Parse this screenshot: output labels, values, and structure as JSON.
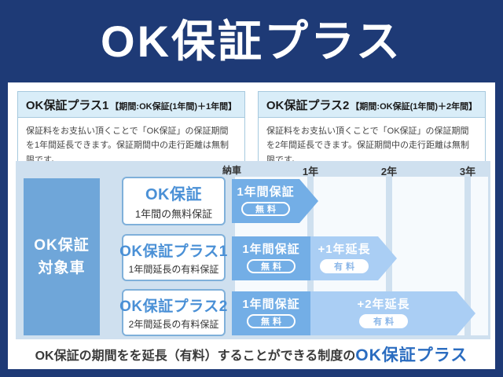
{
  "title": "OK保証プラス",
  "colors": {
    "navy_background": "#1e3a76",
    "panel_background": "#cfe0ef",
    "free_segment_blue": "#73aee6",
    "paid_segment_blue": "#aacef4",
    "target_box_blue": "#6fa6d9",
    "card_title_blue": "#4a90d6",
    "footer_highlight_blue": "#2a6cc0",
    "plan_header_blue": "#d9edf8"
  },
  "plan_cards": [
    {
      "name": "OK保証プラス1",
      "period": "【期間:OK保証(1年間)＋1年間】",
      "description": "保証料をお支払い頂くことで「OK保証」の保証期間を1年間延長できます。保証期間中の走行距離は無制限です。"
    },
    {
      "name": "OK保証プラス2",
      "period": "【期間:OK保証(1年間)＋2年間】",
      "description": "保証料をお支払い頂くことで「OK保証」の保証期間を2年間延長できます。保証期間中の走行距離は無制限です。"
    }
  ],
  "diagram": {
    "timeline_labels": [
      "納車",
      "1年",
      "2年",
      "3年"
    ],
    "target_box": {
      "line1": "OK保証",
      "line2": "対象車"
    },
    "rows": [
      {
        "card": {
          "title": "OK保証",
          "subtitle": "1年間の無料保証"
        },
        "segments": [
          {
            "label": "1年間保証",
            "badge": "無料",
            "years": 1,
            "paid": false
          }
        ]
      },
      {
        "card": {
          "title": "OK保証プラス1",
          "subtitle": "1年間延長の有料保証"
        },
        "segments": [
          {
            "label": "1年間保証",
            "badge": "無料",
            "years": 1,
            "paid": false
          },
          {
            "label": "+1年延長",
            "badge": "有料",
            "years": 1,
            "paid": true
          }
        ]
      },
      {
        "card": {
          "title": "OK保証プラス2",
          "subtitle": "2年間延長の有料保証"
        },
        "segments": [
          {
            "label": "1年間保証",
            "badge": "無料",
            "years": 1,
            "paid": false
          },
          {
            "label": "+2年延長",
            "badge": "有料",
            "years": 2,
            "paid": true
          }
        ]
      }
    ]
  },
  "footer": {
    "text": "OK保証の期間をを延長（有料）することができる制度の",
    "highlight": "OK保証プラス"
  }
}
